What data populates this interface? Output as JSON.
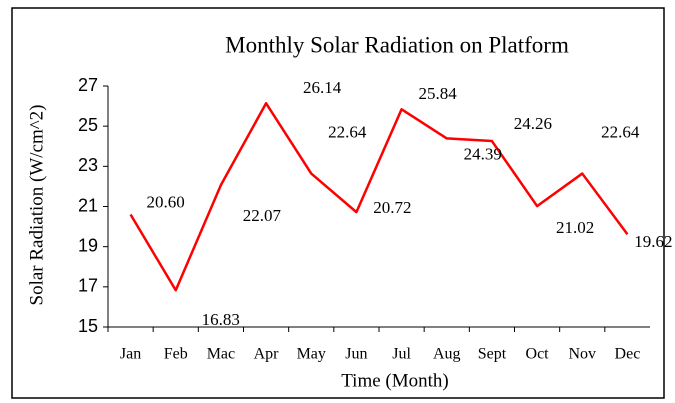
{
  "chart_data": {
    "type": "line",
    "title": "Monthly Solar Radiation on Platform",
    "x_label": "Time (Month)",
    "y_label": "Solar Radiation (W/cm^2)",
    "categories": [
      "Jan",
      "Feb",
      "Mac",
      "Apr",
      "May",
      "Jun",
      "Jul",
      "Aug",
      "Sept",
      "Oct",
      "Nov",
      "Dec"
    ],
    "series": [
      {
        "name": "Solar Radiation",
        "color": "#ff0000",
        "values": [
          20.6,
          16.83,
          22.07,
          26.14,
          22.64,
          20.72,
          25.84,
          24.39,
          24.26,
          21.02,
          22.64,
          19.62
        ],
        "value_labels": [
          "20.60",
          "16.83",
          "22.07",
          "26.14",
          "22.64",
          "20.72",
          "25.84",
          "24.39",
          "24.26",
          "21.02",
          "22.64",
          "19.62"
        ]
      }
    ],
    "ylim": [
      15,
      27
    ],
    "yticks": [
      15,
      17,
      19,
      21,
      23,
      25,
      27
    ]
  }
}
